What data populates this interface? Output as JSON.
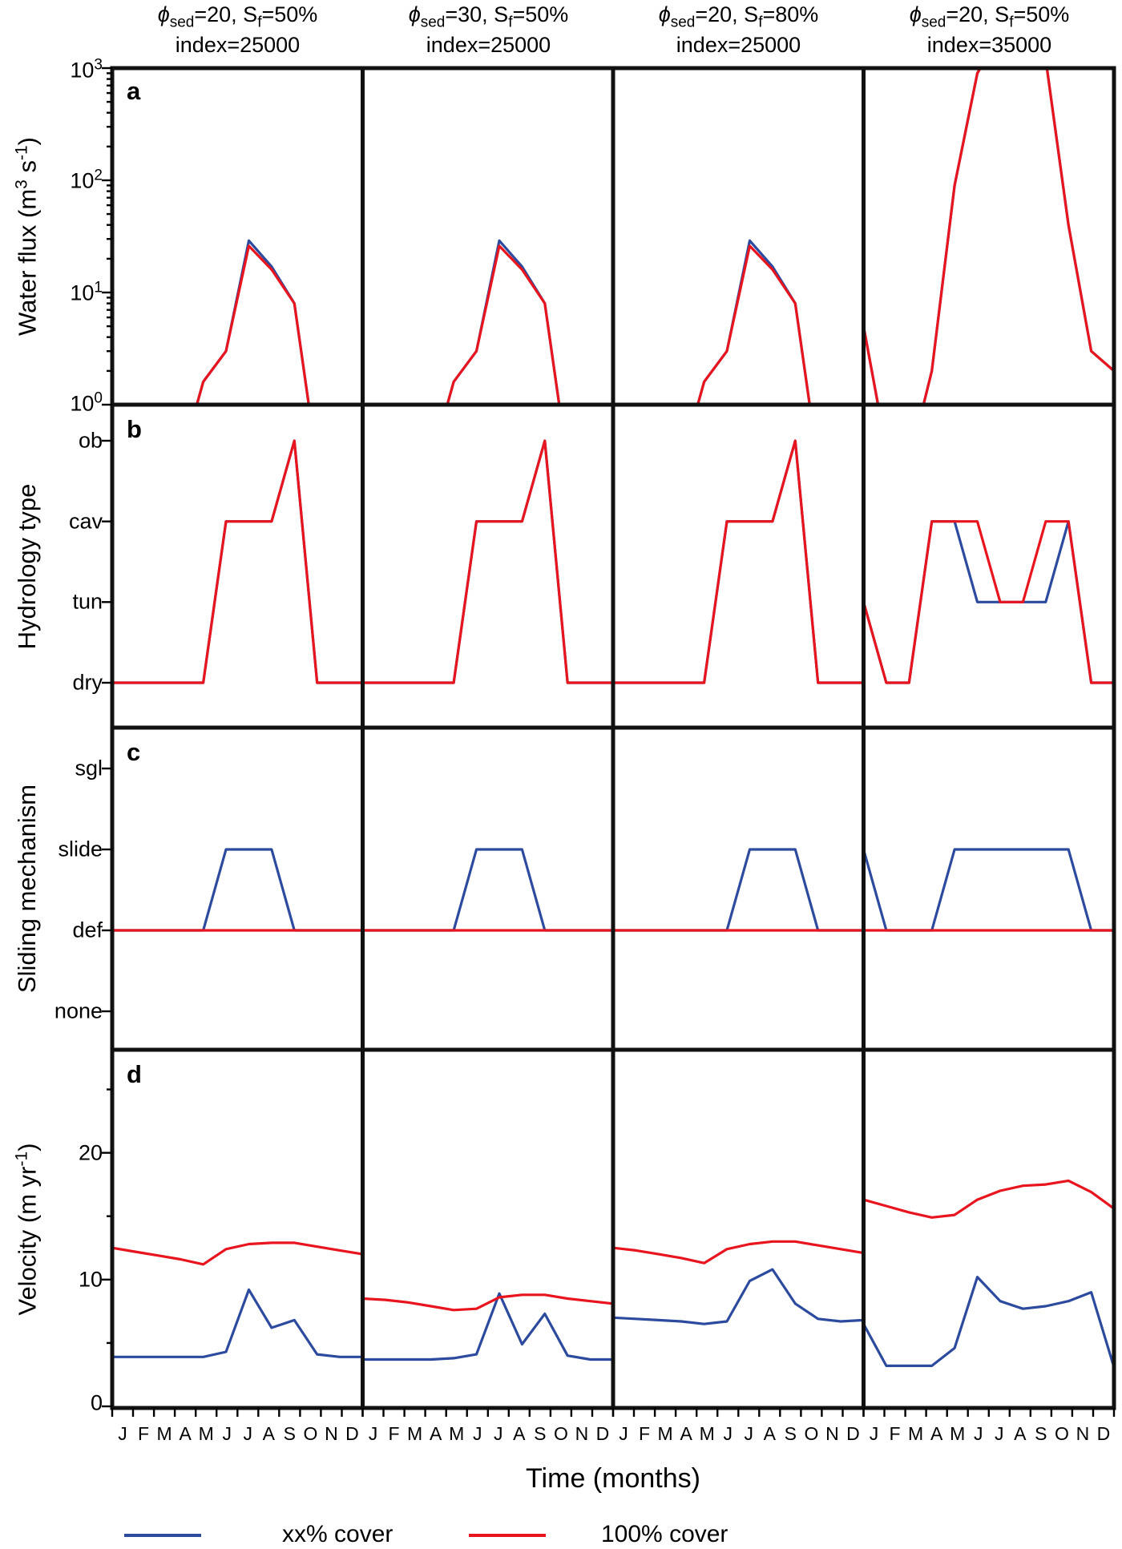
{
  "col_headers": [
    {
      "phi": "ϕ",
      "phi_sub": "sed",
      "mid": "=20, S",
      "s_sub": "f",
      "tail": "=50%",
      "line2": "index=25000"
    },
    {
      "phi": "ϕ",
      "phi_sub": "sed",
      "mid": "=30, S",
      "s_sub": "f",
      "tail": "=50%",
      "line2": "index=25000"
    },
    {
      "phi": "ϕ",
      "phi_sub": "sed",
      "mid": "=20, S",
      "s_sub": "f",
      "tail": "=80%",
      "line2": "index=25000"
    },
    {
      "phi": "ϕ",
      "phi_sub": "sed",
      "mid": "=20, S",
      "s_sub": "f",
      "tail": "=50%",
      "line2": "index=35000"
    }
  ],
  "panel_letters": [
    "a",
    "b",
    "c",
    "d"
  ],
  "ylabels": {
    "a": {
      "p1": "Water flux (m",
      "sup1": "3",
      "p2": " s",
      "sup2": "-1",
      "p3": ")"
    },
    "b": "Hydrology type",
    "c": "Sliding mechanism",
    "d": {
      "p1": "Velocity (m yr",
      "sup1": "-1",
      "p2": ")"
    }
  },
  "flux_ticks": [
    {
      "base": "10",
      "exp": "3"
    },
    {
      "base": "10",
      "exp": "2"
    },
    {
      "base": "10",
      "exp": "1"
    },
    {
      "base": "10",
      "exp": "0"
    }
  ],
  "hydrology_ticks": [
    "ob",
    "cav",
    "tun",
    "dry"
  ],
  "mechanism_ticks": [
    "sgl",
    "slide",
    "def",
    "none"
  ],
  "velocity_ticks": [
    "20",
    "10",
    "0"
  ],
  "xlabel": "Time (months)",
  "legend": [
    {
      "label": "xx% cover",
      "color": "#2c4a9e"
    },
    {
      "label": "100% cover",
      "color": "#e8141e"
    }
  ],
  "chart_data": {
    "type": "line",
    "months": [
      "J",
      "F",
      "M",
      "A",
      "M",
      "J",
      "J",
      "A",
      "S",
      "O",
      "N",
      "D"
    ],
    "column_conditions": [
      "phi_sed=20, S_f=50%, index=25000",
      "phi_sed=30, S_f=50%, index=25000",
      "phi_sed=20, S_f=80%, index=25000",
      "phi_sed=20, S_f=50%, index=35000"
    ],
    "note": "values outside axis limits are off-scale and clipped by the panel frame",
    "panels": [
      {
        "id": "a",
        "ylabel": "Water flux (m3 s-1)",
        "yscale": "log",
        "ylim": [
          1,
          1000
        ],
        "yticks": [
          1,
          10,
          100,
          1000
        ],
        "series": [
          {
            "column": 0,
            "name": "xx% cover",
            "color": "#2c4a9e",
            "values": [
              0.05,
              0.05,
              0.05,
              0.3,
              1.6,
              3.0,
              29,
              17,
              8,
              0.3,
              0.05,
              0.05
            ]
          },
          {
            "column": 0,
            "name": "100% cover",
            "color": "#e8141e",
            "values": [
              0.05,
              0.05,
              0.05,
              0.3,
              1.6,
              3.0,
              26,
              16,
              8,
              0.3,
              0.05,
              0.05
            ]
          },
          {
            "column": 1,
            "name": "xx% cover",
            "color": "#2c4a9e",
            "values": [
              0.05,
              0.05,
              0.05,
              0.3,
              1.6,
              3.0,
              29,
              17,
              8,
              0.3,
              0.05,
              0.05
            ]
          },
          {
            "column": 1,
            "name": "100% cover",
            "color": "#e8141e",
            "values": [
              0.05,
              0.05,
              0.05,
              0.3,
              1.6,
              3.0,
              26,
              16,
              8,
              0.3,
              0.05,
              0.05
            ]
          },
          {
            "column": 2,
            "name": "xx% cover",
            "color": "#2c4a9e",
            "values": [
              0.05,
              0.05,
              0.05,
              0.3,
              1.6,
              3.0,
              29,
              17,
              8,
              0.3,
              0.05,
              0.05
            ]
          },
          {
            "column": 2,
            "name": "100% cover",
            "color": "#e8141e",
            "values": [
              0.05,
              0.05,
              0.05,
              0.3,
              1.6,
              3.0,
              26,
              16,
              8,
              0.3,
              0.05,
              0.05
            ]
          },
          {
            "column": 3,
            "name": "xx% cover",
            "color": "#2c4a9e",
            "values": [
              5,
              0.4,
              0.3,
              2,
              90,
              900,
              2000,
              2200,
              1200,
              40,
              3,
              2
            ]
          },
          {
            "column": 3,
            "name": "100% cover",
            "color": "#e8141e",
            "values": [
              5,
              0.4,
              0.3,
              2,
              90,
              900,
              2000,
              2200,
              1200,
              40,
              3,
              2
            ]
          }
        ]
      },
      {
        "id": "b",
        "ylabel": "Hydrology type",
        "yscale": "category",
        "categories": [
          "dry",
          "tun",
          "cav",
          "ob"
        ],
        "series": [
          {
            "column": 0,
            "name": "xx% cover",
            "color": "#2c4a9e",
            "values": [
              0,
              0,
              0,
              0,
              0,
              2,
              2,
              2,
              3,
              0,
              0,
              0
            ]
          },
          {
            "column": 0,
            "name": "100% cover",
            "color": "#e8141e",
            "values": [
              0,
              0,
              0,
              0,
              0,
              2,
              2,
              2,
              3,
              0,
              0,
              0
            ]
          },
          {
            "column": 1,
            "name": "xx% cover",
            "color": "#2c4a9e",
            "values": [
              0,
              0,
              0,
              0,
              0,
              2,
              2,
              2,
              3,
              0,
              0,
              0
            ]
          },
          {
            "column": 1,
            "name": "100% cover",
            "color": "#e8141e",
            "values": [
              0,
              0,
              0,
              0,
              0,
              2,
              2,
              2,
              3,
              0,
              0,
              0
            ]
          },
          {
            "column": 2,
            "name": "xx% cover",
            "color": "#2c4a9e",
            "values": [
              0,
              0,
              0,
              0,
              0,
              2,
              2,
              2,
              3,
              0,
              0,
              0
            ]
          },
          {
            "column": 2,
            "name": "100% cover",
            "color": "#e8141e",
            "values": [
              0,
              0,
              0,
              0,
              0,
              2,
              2,
              2,
              3,
              0,
              0,
              0
            ]
          },
          {
            "column": 3,
            "name": "xx% cover",
            "color": "#2c4a9e",
            "values": [
              1,
              0,
              0,
              2,
              2,
              1,
              1,
              1,
              1,
              2,
              0,
              0
            ]
          },
          {
            "column": 3,
            "name": "100% cover",
            "color": "#e8141e",
            "values": [
              1,
              0,
              0,
              2,
              2,
              2,
              1,
              1,
              2,
              2,
              0,
              0
            ]
          }
        ]
      },
      {
        "id": "c",
        "ylabel": "Sliding mechanism",
        "yscale": "category",
        "categories": [
          "none",
          "def",
          "slide",
          "sgl"
        ],
        "series": [
          {
            "column": 0,
            "name": "xx% cover",
            "color": "#2c4a9e",
            "values": [
              1,
              1,
              1,
              1,
              1,
              2,
              2,
              2,
              1,
              1,
              1,
              1
            ]
          },
          {
            "column": 0,
            "name": "100% cover",
            "color": "#e8141e",
            "values": [
              1,
              1,
              1,
              1,
              1,
              1,
              1,
              1,
              1,
              1,
              1,
              1
            ]
          },
          {
            "column": 1,
            "name": "xx% cover",
            "color": "#2c4a9e",
            "values": [
              1,
              1,
              1,
              1,
              1,
              2,
              2,
              2,
              1,
              1,
              1,
              1
            ]
          },
          {
            "column": 1,
            "name": "100% cover",
            "color": "#e8141e",
            "values": [
              1,
              1,
              1,
              1,
              1,
              1,
              1,
              1,
              1,
              1,
              1,
              1
            ]
          },
          {
            "column": 2,
            "name": "xx% cover",
            "color": "#2c4a9e",
            "values": [
              1,
              1,
              1,
              1,
              1,
              1,
              2,
              2,
              2,
              1,
              1,
              1
            ]
          },
          {
            "column": 2,
            "name": "100% cover",
            "color": "#e8141e",
            "values": [
              1,
              1,
              1,
              1,
              1,
              1,
              1,
              1,
              1,
              1,
              1,
              1
            ]
          },
          {
            "column": 3,
            "name": "xx% cover",
            "color": "#2c4a9e",
            "values": [
              2,
              1,
              1,
              1,
              2,
              2,
              2,
              2,
              2,
              2,
              1,
              1
            ]
          },
          {
            "column": 3,
            "name": "100% cover",
            "color": "#e8141e",
            "values": [
              1,
              1,
              1,
              1,
              1,
              1,
              1,
              1,
              1,
              1,
              1,
              1
            ]
          }
        ]
      },
      {
        "id": "d",
        "ylabel": "Velocity (m yr-1)",
        "yscale": "linear",
        "ylim": [
          0,
          28
        ],
        "yticks": [
          0,
          10,
          20
        ],
        "series": [
          {
            "column": 0,
            "name": "xx% cover",
            "color": "#2c4a9e",
            "values": [
              3.9,
              3.9,
              3.9,
              3.9,
              3.9,
              4.3,
              9.2,
              6.2,
              6.8,
              4.1,
              3.9,
              3.9
            ]
          },
          {
            "column": 0,
            "name": "100% cover",
            "color": "#e8141e",
            "values": [
              12.5,
              12.2,
              11.9,
              11.6,
              11.2,
              12.4,
              12.8,
              12.9,
              12.9,
              12.6,
              12.3,
              12.0
            ]
          },
          {
            "column": 1,
            "name": "xx% cover",
            "color": "#2c4a9e",
            "values": [
              3.7,
              3.7,
              3.7,
              3.7,
              3.8,
              4.1,
              8.9,
              4.9,
              7.3,
              4.0,
              3.7,
              3.7
            ]
          },
          {
            "column": 1,
            "name": "100% cover",
            "color": "#e8141e",
            "values": [
              8.5,
              8.4,
              8.2,
              7.9,
              7.6,
              7.7,
              8.6,
              8.8,
              8.8,
              8.5,
              8.3,
              8.1
            ]
          },
          {
            "column": 2,
            "name": "xx% cover",
            "color": "#2c4a9e",
            "values": [
              7.0,
              6.9,
              6.8,
              6.7,
              6.5,
              6.7,
              9.9,
              10.8,
              8.1,
              6.9,
              6.7,
              6.8
            ]
          },
          {
            "column": 2,
            "name": "100% cover",
            "color": "#e8141e",
            "values": [
              12.5,
              12.3,
              12.0,
              11.7,
              11.3,
              12.4,
              12.8,
              13.0,
              13.0,
              12.7,
              12.4,
              12.1
            ]
          },
          {
            "column": 3,
            "name": "xx% cover",
            "color": "#2c4a9e",
            "values": [
              6.5,
              3.2,
              3.2,
              3.2,
              4.6,
              10.2,
              8.3,
              7.7,
              7.9,
              8.3,
              9.0,
              3.1
            ]
          },
          {
            "column": 3,
            "name": "100% cover",
            "color": "#e8141e",
            "values": [
              16.3,
              15.8,
              15.3,
              14.9,
              15.1,
              16.3,
              17.0,
              17.4,
              17.5,
              17.8,
              16.9,
              15.6
            ]
          }
        ]
      }
    ]
  }
}
